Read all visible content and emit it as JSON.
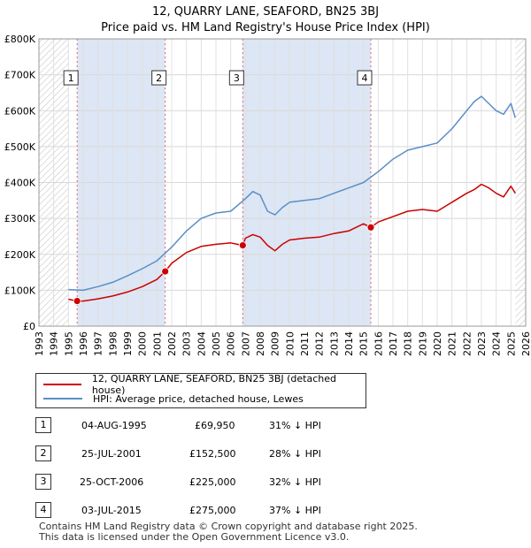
{
  "title": {
    "line1": "12, QUARRY LANE, SEAFORD, BN25 3BJ",
    "line2": "Price paid vs. HM Land Registry's House Price Index (HPI)"
  },
  "chart_data": {
    "type": "line",
    "title": "12, QUARRY LANE, SEAFORD, BN25 3BJ — Price paid vs. HM Land Registry's House Price Index (HPI)",
    "xlim": [
      1993,
      2026
    ],
    "ylim": [
      0,
      800000
    ],
    "x_ticks": [
      "1993",
      "1994",
      "1995",
      "1996",
      "1997",
      "1998",
      "1999",
      "2000",
      "2001",
      "2002",
      "2003",
      "2004",
      "2005",
      "2006",
      "2007",
      "2008",
      "2009",
      "2010",
      "2011",
      "2012",
      "2013",
      "2014",
      "2015",
      "2016",
      "2017",
      "2018",
      "2019",
      "2020",
      "2021",
      "2022",
      "2023",
      "2024",
      "2025",
      "2026"
    ],
    "y_ticks": [
      {
        "value": 0,
        "label": "£0"
      },
      {
        "value": 100000,
        "label": "£100K"
      },
      {
        "value": 200000,
        "label": "£200K"
      },
      {
        "value": 300000,
        "label": "£300K"
      },
      {
        "value": 400000,
        "label": "£400K"
      },
      {
        "value": 500000,
        "label": "£500K"
      },
      {
        "value": 600000,
        "label": "£600K"
      },
      {
        "value": 700000,
        "label": "£700K"
      },
      {
        "value": 800000,
        "label": "£800K"
      }
    ],
    "grid": true,
    "hatched_regions": [
      [
        1993,
        1995
      ],
      [
        2025.3,
        2026
      ]
    ],
    "shaded_bands": [
      [
        1995.6,
        2001.55
      ],
      [
        2006.8,
        2015.5
      ]
    ],
    "sale_markers": [
      {
        "label": "1",
        "x": 1995.59,
        "y": 69950
      },
      {
        "label": "2",
        "x": 2001.56,
        "y": 152500
      },
      {
        "label": "3",
        "x": 2006.82,
        "y": 225000
      },
      {
        "label": "4",
        "x": 2015.5,
        "y": 275000
      }
    ],
    "series": [
      {
        "name": "12, QUARRY LANE, SEAFORD, BN25 3BJ (detached house)",
        "color": "#cc0000",
        "x": [
          1995.0,
          1995.59,
          1996.0,
          1997.0,
          1998.0,
          1999.0,
          2000.0,
          2001.0,
          2001.56,
          2002.0,
          2003.0,
          2004.0,
          2005.0,
          2006.0,
          2006.82,
          2007.0,
          2007.5,
          2008.0,
          2008.5,
          2009.0,
          2009.5,
          2010.0,
          2011.0,
          2012.0,
          2013.0,
          2014.0,
          2015.0,
          2015.5,
          2016.0,
          2017.0,
          2018.0,
          2019.0,
          2020.0,
          2021.0,
          2022.0,
          2022.5,
          2023.0,
          2023.5,
          2024.0,
          2024.5,
          2025.0,
          2025.3
        ],
        "y": [
          75000,
          69950,
          70000,
          76000,
          84000,
          95000,
          110000,
          130000,
          152500,
          175000,
          205000,
          222000,
          228000,
          232000,
          225000,
          245000,
          255000,
          248000,
          225000,
          210000,
          228000,
          240000,
          245000,
          248000,
          258000,
          265000,
          285000,
          275000,
          290000,
          305000,
          320000,
          325000,
          320000,
          345000,
          370000,
          380000,
          395000,
          385000,
          370000,
          360000,
          390000,
          370000
        ]
      },
      {
        "name": "HPI: Average price, detached house, Lewes",
        "color": "#5b8ec7",
        "x": [
          1995.0,
          1996.0,
          1997.0,
          1998.0,
          1999.0,
          2000.0,
          2001.0,
          2002.0,
          2003.0,
          2004.0,
          2005.0,
          2006.0,
          2007.0,
          2007.5,
          2008.0,
          2008.5,
          2009.0,
          2009.5,
          2010.0,
          2011.0,
          2012.0,
          2013.0,
          2014.0,
          2015.0,
          2016.0,
          2017.0,
          2018.0,
          2019.0,
          2020.0,
          2021.0,
          2022.0,
          2022.5,
          2023.0,
          2023.5,
          2024.0,
          2024.5,
          2025.0,
          2025.3
        ],
        "y": [
          102000,
          100000,
          110000,
          122000,
          140000,
          160000,
          182000,
          220000,
          265000,
          300000,
          315000,
          320000,
          355000,
          375000,
          365000,
          320000,
          310000,
          330000,
          345000,
          350000,
          355000,
          370000,
          385000,
          400000,
          430000,
          465000,
          490000,
          500000,
          510000,
          550000,
          600000,
          625000,
          640000,
          620000,
          600000,
          590000,
          620000,
          580000
        ]
      }
    ]
  },
  "legend": {
    "property": "12, QUARRY LANE, SEAFORD, BN25 3BJ (detached house)",
    "hpi": "HPI: Average price, detached house, Lewes",
    "property_color": "#cc0000",
    "hpi_color": "#5b8ec7"
  },
  "sales": [
    {
      "num": "1",
      "date": "04-AUG-1995",
      "price": "£69,950",
      "pct": "31% ↓ HPI"
    },
    {
      "num": "2",
      "date": "25-JUL-2001",
      "price": "£152,500",
      "pct": "28% ↓ HPI"
    },
    {
      "num": "3",
      "date": "25-OCT-2006",
      "price": "£225,000",
      "pct": "32% ↓ HPI"
    },
    {
      "num": "4",
      "date": "03-JUL-2015",
      "price": "£275,000",
      "pct": "37% ↓ HPI"
    }
  ],
  "footer": {
    "line1": "Contains HM Land Registry data © Crown copyright and database right 2025.",
    "line2": "This data is licensed under the Open Government Licence v3.0."
  }
}
